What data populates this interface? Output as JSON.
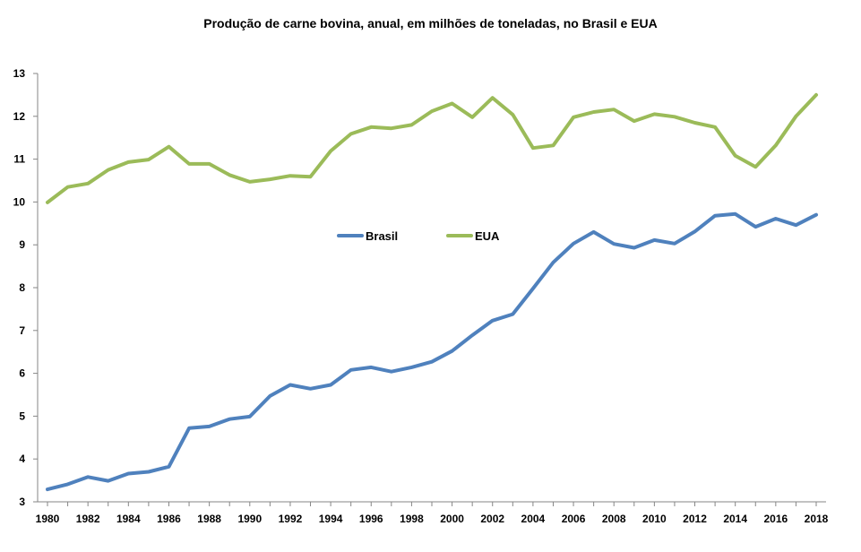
{
  "chart_data": {
    "type": "line",
    "title": "Produção de carne bovina, anual, em milhões de toneladas, no Brasil e EUA",
    "xlabel": "",
    "ylabel": "",
    "xlim": [
      1980,
      2018
    ],
    "ylim": [
      3,
      13
    ],
    "grid": false,
    "legend_position": "center",
    "x_ticks": [
      1980,
      1982,
      1984,
      1986,
      1988,
      1990,
      1992,
      1994,
      1996,
      1998,
      2000,
      2002,
      2004,
      2006,
      2008,
      2010,
      2012,
      2014,
      2016,
      2018
    ],
    "y_ticks": [
      3,
      4,
      5,
      6,
      7,
      8,
      9,
      10,
      11,
      12,
      13
    ],
    "x": [
      1980,
      1981,
      1982,
      1983,
      1984,
      1985,
      1986,
      1987,
      1988,
      1989,
      1990,
      1991,
      1992,
      1993,
      1994,
      1995,
      1996,
      1997,
      1998,
      1999,
      2000,
      2001,
      2002,
      2003,
      2004,
      2005,
      2006,
      2007,
      2008,
      2009,
      2010,
      2011,
      2012,
      2013,
      2014,
      2015,
      2016,
      2017,
      2018
    ],
    "series": [
      {
        "name": "Brasil",
        "color": "#4F81BD",
        "values": [
          3.29,
          3.41,
          3.58,
          3.49,
          3.66,
          3.7,
          3.82,
          4.72,
          4.76,
          4.93,
          4.99,
          5.47,
          5.73,
          5.64,
          5.73,
          6.08,
          6.14,
          6.04,
          6.14,
          6.27,
          6.52,
          6.89,
          7.23,
          7.38,
          7.98,
          8.59,
          9.03,
          9.3,
          9.02,
          8.93,
          9.11,
          9.03,
          9.31,
          9.68,
          9.72,
          9.42,
          9.61,
          9.46,
          9.7
        ]
      },
      {
        "name": "EUA",
        "color": "#9BBB59",
        "values": [
          9.99,
          10.35,
          10.43,
          10.75,
          10.93,
          10.99,
          11.29,
          10.89,
          10.89,
          10.63,
          10.47,
          10.53,
          10.61,
          10.59,
          11.19,
          11.59,
          11.75,
          11.72,
          11.8,
          12.12,
          12.3,
          11.98,
          12.43,
          12.04,
          11.26,
          11.32,
          11.98,
          12.1,
          12.16,
          11.89,
          12.05,
          11.99,
          11.85,
          11.75,
          11.08,
          10.82,
          11.32,
          12.0,
          12.5
        ]
      }
    ]
  }
}
